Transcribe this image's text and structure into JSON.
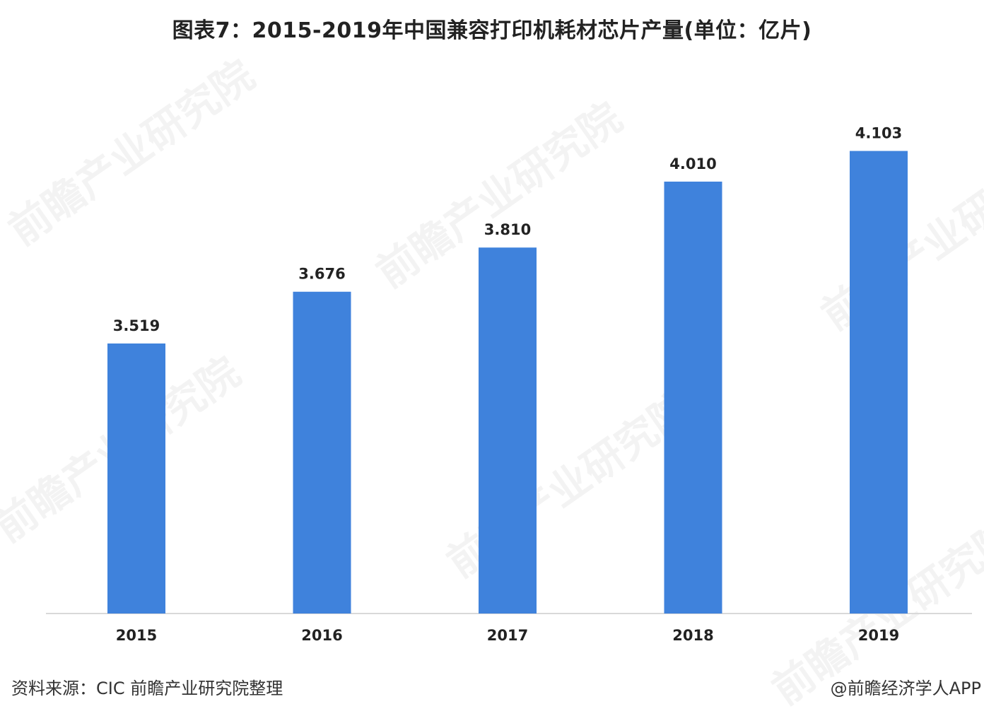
{
  "chart_data": {
    "type": "bar",
    "title": "图表7：2015-2019年中国兼容打印机耗材芯片产量(单位：亿片)",
    "categories": [
      "2015",
      "2016",
      "2017",
      "2018",
      "2019"
    ],
    "values": [
      3.519,
      3.676,
      3.81,
      4.01,
      4.103
    ],
    "value_labels": [
      "3.519",
      "3.676",
      "3.810",
      "4.010",
      "4.103"
    ],
    "xlabel": "",
    "ylabel": "",
    "ylim": [
      2.7,
      4.25
    ],
    "grid": false,
    "legend": "none",
    "bar_color": "#3f82dc"
  },
  "watermark": "前瞻产业研究院",
  "footer": {
    "source": "资料来源：CIC 前瞻产业研究院整理",
    "credit": "@前瞻经济学人APP"
  }
}
